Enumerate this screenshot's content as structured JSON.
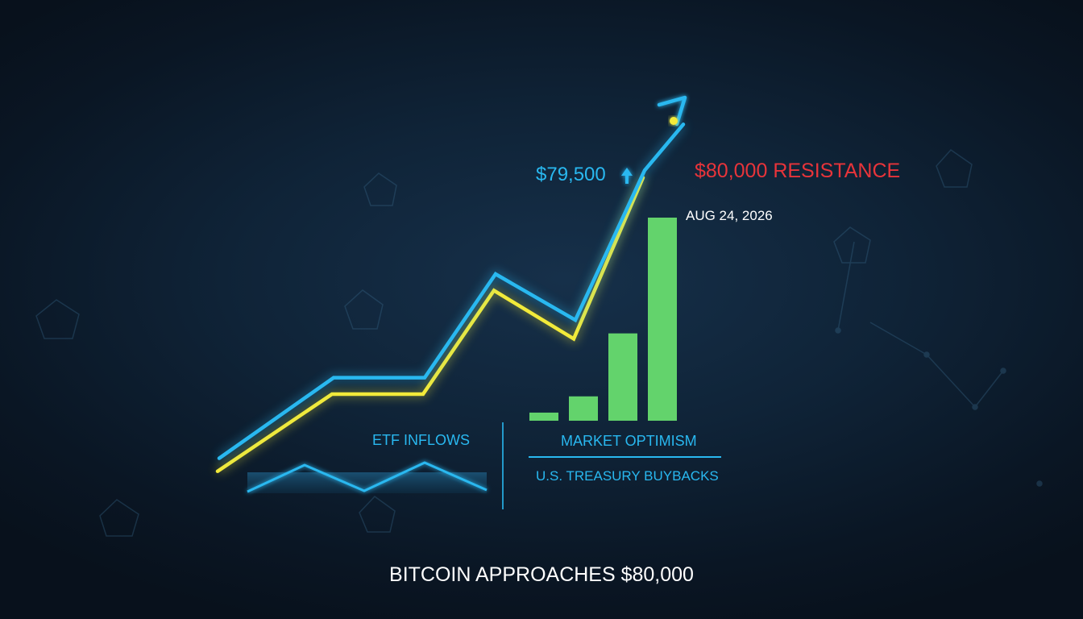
{
  "chart_data": {
    "type": "line",
    "title": "BITCOIN APPROACHES $80,000",
    "price_label": "$79,500",
    "resistance_label": "$80,000 RESISTANCE",
    "date_label": "AUG 24, 2026",
    "resistance_value": 80000,
    "price_value": 79500,
    "series": [
      {
        "values": [
          55000,
          62000,
          62000,
          71000,
          67000,
          80000,
          84000
        ],
        "color": "#29b8f0"
      },
      {
        "values": [
          54500,
          61200,
          61200,
          70200,
          66000,
          80000
        ],
        "color": "#f2ea3a"
      }
    ],
    "bars": [
      0.04,
      0.12,
      0.43,
      1.0
    ],
    "bar_color": "#63d36c",
    "annotations": {
      "left": "ETF INFLOWS",
      "middle": "MARKET OPTIMISM",
      "right": "U.S. TREASURY BUYBACKS"
    },
    "colors": {
      "accent_blue": "#29b8f0",
      "accent_yellow": "#f2ea3a",
      "resistance_red": "#e8343a",
      "bar_green": "#63d36c",
      "text_white": "#ffffff"
    },
    "icons": [
      "up-arrow-icon",
      "pentagon-network-decor"
    ]
  }
}
